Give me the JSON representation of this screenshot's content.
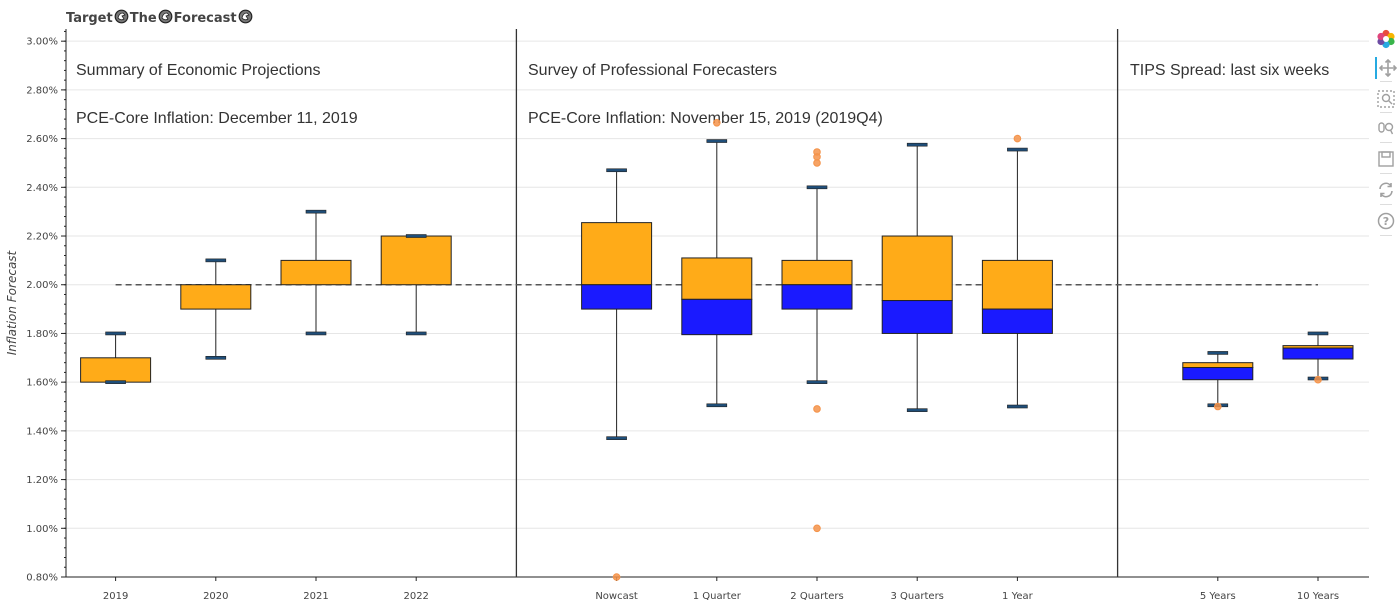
{
  "title": "Target🫵The🫵Forecast🫵",
  "title_parts": [
    "Target",
    "The",
    "Forecast"
  ],
  "colors": {
    "upper_box": "#ffab18",
    "lower_box": "#1a1aff",
    "outlier": "#f4934a",
    "whisker_cap": "#1f4e79",
    "target_line": "#555555",
    "divider": "#333333"
  },
  "toolbar": {
    "icons": [
      "bokeh-logo-icon",
      "pan-icon",
      "box-zoom-icon",
      "wheel-zoom-icon",
      "save-icon",
      "reset-icon",
      "help-icon"
    ]
  },
  "chart_data": {
    "type": "box",
    "ylabel": "Inflation Forecast",
    "ylim": [
      0.8,
      3.05
    ],
    "yticks": [
      0.8,
      1.0,
      1.2,
      1.4,
      1.6,
      1.8,
      2.0,
      2.2,
      2.4,
      2.6,
      2.8,
      3.0
    ],
    "ytick_labels": [
      "0.80%",
      "1.00%",
      "1.20%",
      "1.40%",
      "1.60%",
      "1.80%",
      "2.00%",
      "2.20%",
      "2.40%",
      "2.60%",
      "2.80%",
      "3.00%"
    ],
    "target": 2.0,
    "grid": true,
    "panels": [
      {
        "heading": "Summary of Economic Projections",
        "subheading": "PCE-Core Inflation: December 11, 2019",
        "boxes": [
          {
            "label": "2019",
            "lower": 1.6,
            "q1": 1.6,
            "median": 1.6,
            "q3": 1.7,
            "upper": 1.8,
            "outliers": []
          },
          {
            "label": "2020",
            "lower": 1.7,
            "q1": 1.9,
            "median": 1.9,
            "q3": 2.0,
            "upper": 2.1,
            "outliers": []
          },
          {
            "label": "2021",
            "lower": 1.8,
            "q1": 2.0,
            "median": 2.0,
            "q3": 2.1,
            "upper": 2.3,
            "outliers": []
          },
          {
            "label": "2022",
            "lower": 1.8,
            "q1": 2.0,
            "median": 2.0,
            "q3": 2.2,
            "upper": 2.2,
            "outliers": []
          }
        ]
      },
      {
        "heading": "Survey of Professional Forecasters",
        "subheading": "PCE-Core Inflation:  November 15, 2019 (2019Q4)",
        "boxes": [
          {
            "label": "Nowcast",
            "lower": 1.37,
            "q1": 1.9,
            "median": 2.0,
            "q3": 2.255,
            "upper": 2.47,
            "outliers": [
              0.8
            ]
          },
          {
            "label": "1 Quarter",
            "lower": 1.505,
            "q1": 1.795,
            "median": 1.94,
            "q3": 2.11,
            "upper": 2.59,
            "outliers": [
              2.665
            ]
          },
          {
            "label": "2 Quarters",
            "lower": 1.6,
            "q1": 1.9,
            "median": 2.0,
            "q3": 2.1,
            "upper": 2.4,
            "outliers": [
              2.545,
              2.525,
              2.5,
              1.49,
              1.0
            ]
          },
          {
            "label": "3 Quarters",
            "lower": 1.485,
            "q1": 1.8,
            "median": 1.935,
            "q3": 2.2,
            "upper": 2.575,
            "outliers": []
          },
          {
            "label": "1 Year",
            "lower": 1.5,
            "q1": 1.8,
            "median": 1.9,
            "q3": 2.1,
            "upper": 2.555,
            "outliers": [
              2.6
            ]
          }
        ]
      },
      {
        "heading": "TIPS Spread: last six weeks",
        "subheading": "",
        "boxes": [
          {
            "label": "5 Years",
            "lower": 1.505,
            "q1": 1.61,
            "median": 1.66,
            "q3": 1.68,
            "upper": 1.72,
            "outliers": [
              1.5
            ]
          },
          {
            "label": "10 Years",
            "lower": 1.615,
            "q1": 1.695,
            "median": 1.74,
            "q3": 1.75,
            "upper": 1.8,
            "outliers": [
              1.61
            ]
          }
        ]
      }
    ]
  }
}
